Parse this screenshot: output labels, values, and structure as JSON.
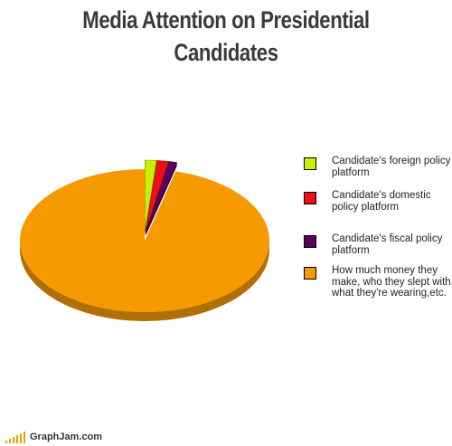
{
  "title": "Media Attention on Presidential Candidates",
  "footer": {
    "brand": "GraphJam.com"
  },
  "colors": {
    "foreign": "#c8f000",
    "domestic": "#ee1010",
    "fiscal": "#5a005e",
    "gossip": "#f59a00"
  },
  "chart_data": {
    "type": "pie",
    "title": "Media Attention on Presidential Candidates",
    "series": [
      {
        "name": "Candidate's foreign policy platform",
        "value": 1.5,
        "color": "#c8f000"
      },
      {
        "name": "Candidate's domestic policy platform",
        "value": 1.5,
        "color": "#ee1010"
      },
      {
        "name": "Candidate's fiscal policy platform",
        "value": 1.0,
        "color": "#5a005e"
      },
      {
        "name": "How much money they make, who they slept with, what they're wearing,etc.",
        "value": 96.0,
        "color": "#f59a00"
      }
    ],
    "legend_position": "right",
    "style": "3d"
  },
  "legend": [
    {
      "label": "Candidate's foreign policy platform",
      "color": "#c8f000"
    },
    {
      "label": "Candidate's domestic policy platform",
      "color": "#ee1010"
    },
    {
      "label": "Candidate's fiscal policy platform",
      "color": "#5a005e"
    },
    {
      "label": "How much money they make, who they slept with, what they're wearing,etc.",
      "color": "#f59a00"
    }
  ]
}
